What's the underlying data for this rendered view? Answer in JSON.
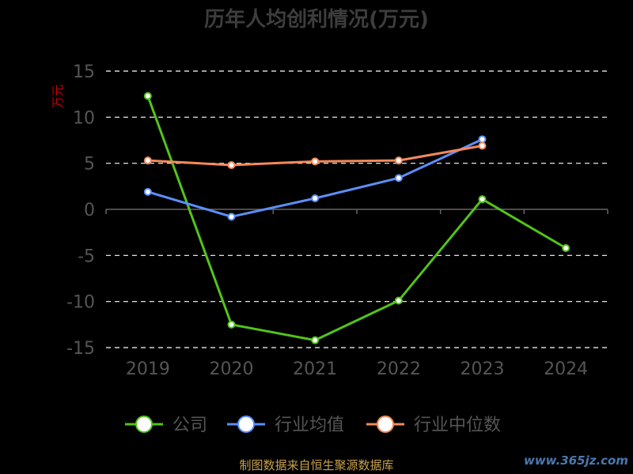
{
  "chart_data": {
    "type": "line",
    "title": "历年人均创利情况(万元)",
    "ylabel": "万元",
    "xlabel": "",
    "categories": [
      "2019",
      "2020",
      "2021",
      "2022",
      "2023",
      "2024"
    ],
    "ylim": [
      -15,
      15
    ],
    "yticks": [
      15,
      10,
      5,
      0,
      -5,
      -10,
      -15
    ],
    "grid": true,
    "legend_position": "bottom",
    "series": [
      {
        "name": "公司",
        "color": "#52c41a",
        "values": [
          12.3,
          -12.5,
          -14.2,
          -9.9,
          1.1,
          -4.2
        ]
      },
      {
        "name": "行业均值",
        "color": "#5b8ff9",
        "values": [
          1.9,
          -0.8,
          1.2,
          3.4,
          7.6,
          null
        ]
      },
      {
        "name": "行业中位数",
        "color": "#f6895a",
        "values": [
          5.3,
          4.8,
          5.2,
          5.3,
          6.9,
          null
        ]
      }
    ]
  },
  "footer": "制图数据来自恒生聚源数据库",
  "watermark": "www.365jz.com"
}
